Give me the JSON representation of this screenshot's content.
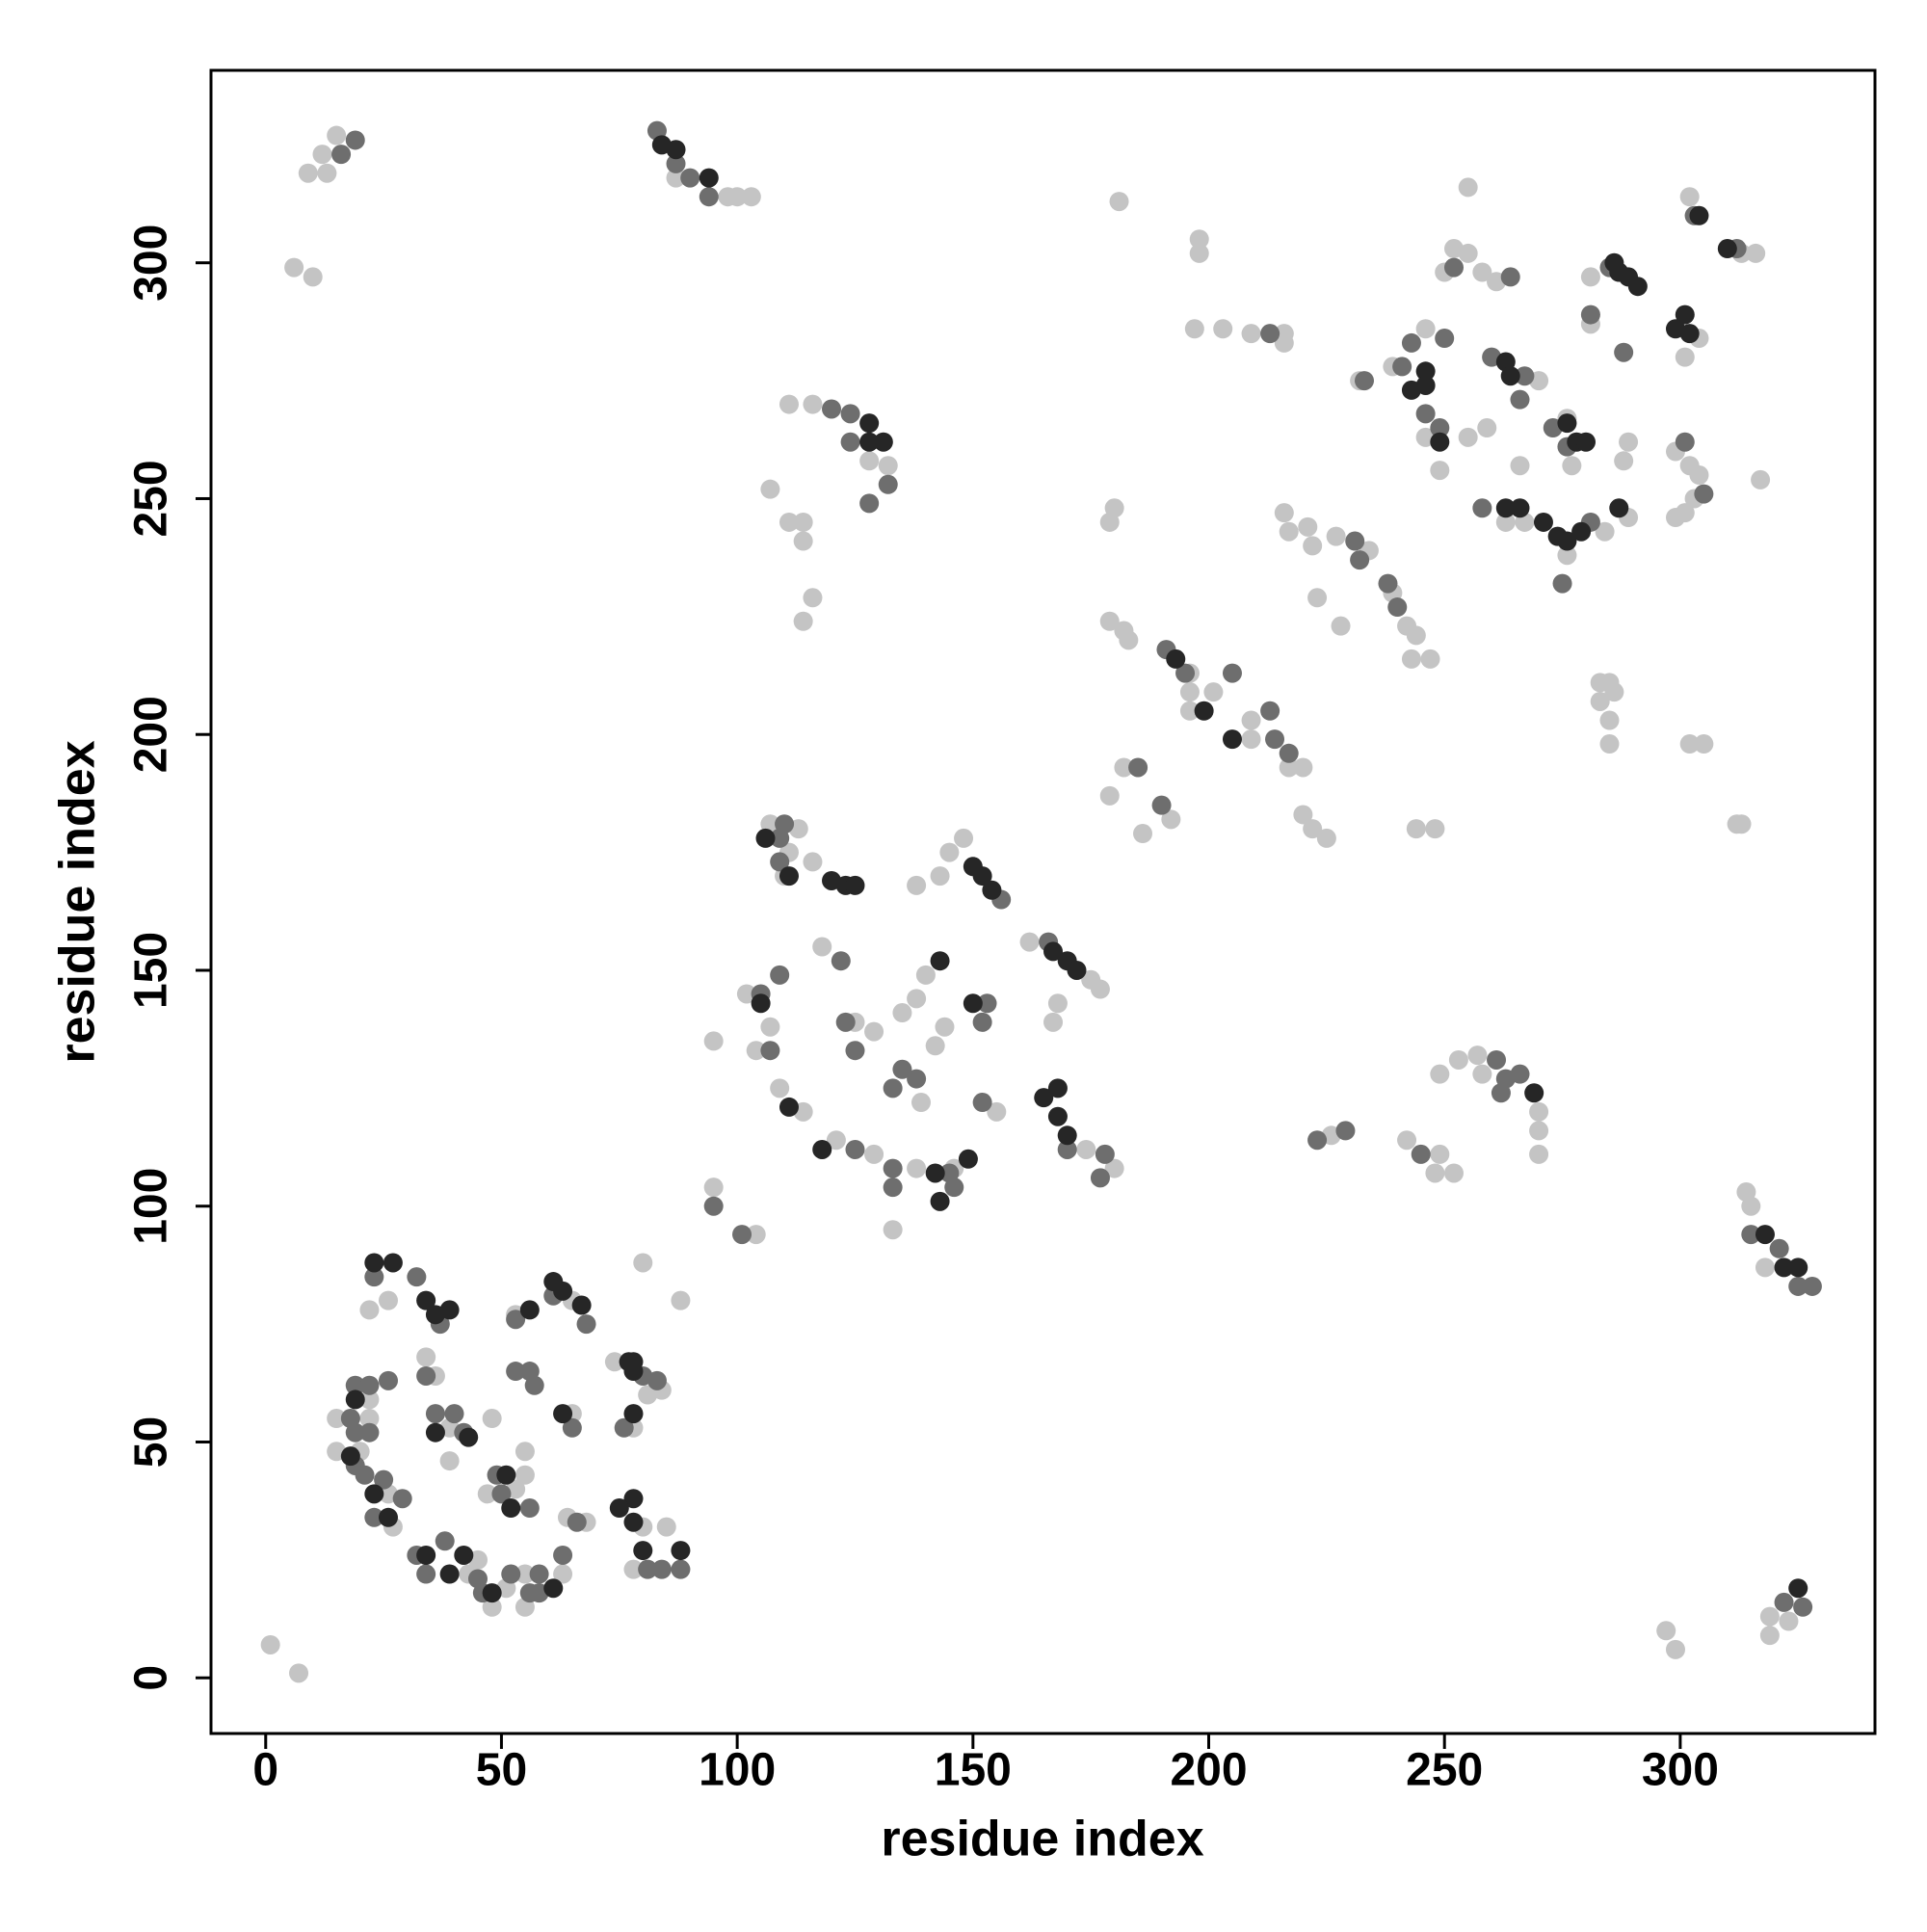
{
  "chart_data": {
    "type": "scatter",
    "xlabel": "residue index",
    "ylabel": "residue index",
    "xlim": [
      -11.6,
      341.3
    ],
    "ylim": [
      -11.8,
      340.8
    ],
    "xticks": [
      0,
      50,
      100,
      150,
      200,
      250,
      300
    ],
    "yticks": [
      0,
      50,
      100,
      150,
      200,
      250,
      300
    ],
    "grid": false,
    "series": [
      {
        "color": "#c4c4c4",
        "x": [
          6,
          10,
          9,
          13,
          12,
          15,
          87,
          98,
          100,
          103,
          111,
          116,
          128,
          132,
          107,
          111,
          114,
          114,
          116,
          114,
          26,
          22,
          53,
          65,
          22,
          15,
          22,
          15,
          20,
          26,
          27,
          43,
          45,
          48,
          51,
          55,
          55,
          63,
          34,
          36,
          39,
          39,
          48,
          47,
          53,
          55,
          55,
          65,
          64,
          68,
          74,
          84,
          81,
          78,
          80,
          78,
          85,
          80,
          88,
          1,
          7,
          95,
          104,
          107,
          113,
          111,
          116,
          110,
          145,
          148,
          138,
          143,
          162,
          175,
          177,
          168,
          167,
          102,
          107,
          104,
          95,
          109,
          114,
          121,
          129,
          138,
          146,
          133,
          118,
          125,
          129,
          135,
          138,
          140,
          144,
          142,
          139,
          174,
          180,
          155,
          226,
          242,
          249,
          248,
          252,
          249,
          253,
          257,
          270,
          270,
          270,
          258,
          179,
          182,
          183,
          179,
          180,
          179,
          182,
          186,
          192,
          196,
          196,
          196,
          201,
          209,
          209,
          217,
          220,
          220,
          222,
          225,
          244,
          248,
          181,
          198,
          198,
          197,
          203,
          209,
          216,
          216,
          216,
          217,
          221,
          222,
          227,
          234,
          223,
          228,
          239,
          242,
          244,
          243,
          247,
          232,
          239,
          246,
          246,
          249,
          250,
          252,
          255,
          255,
          255,
          258,
          261,
          259,
          270,
          266,
          263,
          267,
          276,
          284,
          289,
          277,
          276,
          281,
          281,
          289,
          288,
          304,
          301,
          299,
          302,
          304,
          303,
          301,
          299,
          317,
          283,
          285,
          283,
          286,
          285,
          285,
          302,
          313,
          316,
          302,
          305,
          312,
          313,
          314,
          315,
          318,
          297,
          299,
          319,
          319,
          323
        ],
        "y": [
          299,
          297,
          319,
          319,
          323,
          327,
          318,
          314,
          314,
          314,
          270,
          270,
          258,
          257,
          252,
          245,
          245,
          241,
          229,
          224,
          80,
          78,
          77,
          80,
          59,
          55,
          55,
          48,
          48,
          39,
          32,
          22,
          25,
          15,
          19,
          22,
          15,
          22,
          68,
          64,
          53,
          46,
          55,
          39,
          40,
          43,
          48,
          56,
          34,
          33,
          67,
          61,
          60,
          53,
          32,
          23,
          32,
          88,
          80,
          7,
          1,
          104,
          94,
          181,
          180,
          175,
          173,
          170,
          175,
          178,
          168,
          170,
          156,
          148,
          146,
          143,
          139,
          145,
          138,
          133,
          135,
          125,
          120,
          114,
          111,
          108,
          108,
          95,
          155,
          139,
          137,
          141,
          144,
          149,
          138,
          134,
          122,
          112,
          108,
          120,
          115,
          114,
          111,
          107,
          107,
          128,
          131,
          132,
          120,
          116,
          111,
          128,
          224,
          222,
          220,
          245,
          248,
          187,
          193,
          179,
          182,
          213,
          209,
          205,
          209,
          203,
          199,
          193,
          193,
          183,
          180,
          178,
          180,
          180,
          313,
          305,
          302,
          286,
          286,
          285,
          285,
          283,
          247,
          243,
          244,
          240,
          242,
          239,
          229,
          223,
          230,
          223,
          221,
          216,
          216,
          275,
          278,
          286,
          263,
          256,
          298,
          303,
          302,
          263,
          316,
          298,
          296,
          265,
          275,
          257,
          245,
          245,
          238,
          243,
          246,
          257,
          267,
          297,
          287,
          262,
          258,
          284,
          280,
          260,
          257,
          255,
          250,
          247,
          246,
          254,
          211,
          211,
          207,
          209,
          203,
          198,
          314,
          302,
          302,
          198,
          198,
          181,
          181,
          103,
          100,
          87,
          10,
          6,
          13,
          9,
          12
        ]
      },
      {
        "color": "#6e6e6e",
        "x": [
          16,
          19,
          83,
          87,
          90,
          94,
          120,
          124,
          124,
          132,
          128,
          23,
          32,
          37,
          53,
          61,
          68,
          19,
          22,
          26,
          18,
          19,
          22,
          19,
          21,
          25,
          29,
          23,
          32,
          38,
          34,
          45,
          46,
          52,
          56,
          58,
          63,
          58,
          34,
          36,
          40,
          42,
          49,
          50,
          56,
          53,
          56,
          57,
          65,
          66,
          80,
          83,
          76,
          81,
          88,
          84,
          95,
          101,
          110,
          109,
          109,
          156,
          166,
          105,
          109,
          107,
          125,
          133,
          133,
          145,
          146,
          122,
          123,
          125,
          135,
          138,
          133,
          153,
          152,
          170,
          178,
          177,
          152,
          223,
          229,
          245,
          261,
          263,
          266,
          262,
          185,
          190,
          191,
          195,
          205,
          213,
          214,
          217,
          213,
          231,
          232,
          238,
          240,
          233,
          241,
          243,
          246,
          249,
          250,
          252,
          264,
          260,
          267,
          266,
          258,
          275,
          281,
          273,
          276,
          281,
          285,
          288,
          301,
          305,
          303,
          312,
          315,
          321,
          325,
          328,
          322,
          326
        ],
        "y": [
          323,
          326,
          328,
          321,
          318,
          314,
          269,
          268,
          262,
          253,
          249,
          85,
          85,
          75,
          76,
          81,
          75,
          62,
          62,
          63,
          55,
          52,
          52,
          45,
          43,
          42,
          38,
          34,
          26,
          29,
          22,
          21,
          18,
          22,
          18,
          22,
          26,
          18,
          64,
          56,
          56,
          52,
          43,
          39,
          36,
          65,
          65,
          62,
          53,
          33,
          64,
          63,
          53,
          23,
          23,
          23,
          100,
          94,
          181,
          178,
          173,
          165,
          156,
          145,
          149,
          133,
          112,
          108,
          104,
          107,
          104,
          152,
          139,
          133,
          129,
          127,
          125,
          143,
          139,
          112,
          111,
          106,
          122,
          114,
          116,
          111,
          131,
          127,
          128,
          124,
          193,
          185,
          218,
          213,
          213,
          205,
          199,
          196,
          285,
          241,
          237,
          232,
          227,
          275,
          278,
          283,
          268,
          265,
          284,
          299,
          297,
          280,
          276,
          271,
          248,
          232,
          245,
          265,
          261,
          289,
          299,
          281,
          262,
          251,
          310,
          303,
          94,
          91,
          83,
          83,
          16,
          15
        ]
      },
      {
        "color": "#262626",
        "x": [
          84,
          87,
          94,
          128,
          128,
          131,
          23,
          27,
          34,
          36,
          39,
          56,
          61,
          63,
          67,
          19,
          18,
          23,
          26,
          34,
          39,
          42,
          48,
          61,
          36,
          43,
          51,
          52,
          63,
          77,
          78,
          78,
          78,
          78,
          75,
          78,
          80,
          88,
          106,
          111,
          120,
          123,
          125,
          150,
          152,
          154,
          167,
          170,
          172,
          105,
          111,
          118,
          142,
          143,
          149,
          143,
          150,
          165,
          168,
          168,
          170,
          269,
          193,
          199,
          205,
          246,
          246,
          243,
          249,
          263,
          264,
          263,
          266,
          271,
          274,
          276,
          279,
          287,
          276,
          278,
          280,
          287,
          289,
          286,
          291,
          301,
          299,
          302,
          304,
          310,
          318,
          322,
          325,
          325
        ],
        "y": [
          325,
          324,
          318,
          266,
          262,
          262,
          88,
          88,
          80,
          77,
          78,
          78,
          84,
          82,
          79,
          59,
          47,
          39,
          34,
          26,
          22,
          26,
          18,
          19,
          52,
          51,
          43,
          36,
          56,
          67,
          67,
          65,
          56,
          38,
          36,
          33,
          27,
          27,
          178,
          170,
          169,
          168,
          168,
          172,
          170,
          167,
          154,
          152,
          150,
          143,
          121,
          112,
          107,
          101,
          110,
          152,
          143,
          123,
          125,
          119,
          115,
          124,
          216,
          205,
          199,
          277,
          274,
          273,
          262,
          279,
          276,
          248,
          248,
          245,
          242,
          241,
          243,
          248,
          266,
          262,
          262,
          298,
          297,
          300,
          295,
          289,
          286,
          285,
          310,
          303,
          94,
          87,
          87,
          19
        ]
      }
    ]
  }
}
